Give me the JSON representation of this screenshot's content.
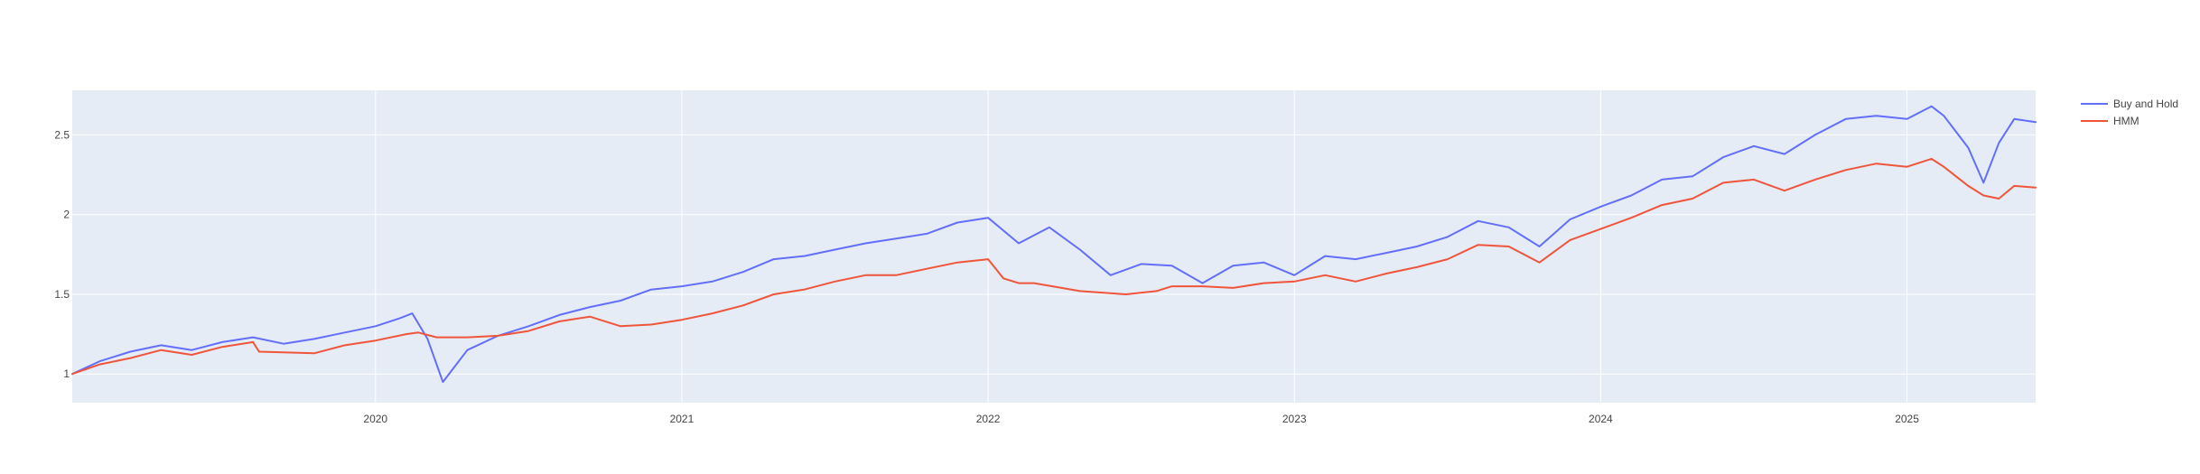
{
  "chart_data": {
    "type": "line",
    "title": "",
    "xlabel": "",
    "ylabel": "",
    "xlim": [
      2019.01,
      2025.42
    ],
    "ylim": [
      0.82,
      2.78
    ],
    "grid": true,
    "legend_position": "top-right",
    "x_ticks": [
      {
        "value": 2020,
        "label": "2020"
      },
      {
        "value": 2021,
        "label": "2021"
      },
      {
        "value": 2022,
        "label": "2022"
      },
      {
        "value": 2023,
        "label": "2023"
      },
      {
        "value": 2024,
        "label": "2024"
      },
      {
        "value": 2025,
        "label": "2025"
      }
    ],
    "y_ticks": [
      {
        "value": 1,
        "label": "1"
      },
      {
        "value": 1.5,
        "label": "1.5"
      },
      {
        "value": 2,
        "label": "2"
      },
      {
        "value": 2.5,
        "label": "2.5"
      }
    ],
    "series": [
      {
        "name": "Buy and Hold",
        "color": "#636efa",
        "x": [
          2019.01,
          2019.1,
          2019.2,
          2019.3,
          2019.4,
          2019.5,
          2019.6,
          2019.7,
          2019.8,
          2019.9,
          2020.0,
          2020.08,
          2020.12,
          2020.17,
          2020.22,
          2020.3,
          2020.4,
          2020.5,
          2020.6,
          2020.7,
          2020.8,
          2020.9,
          2021.0,
          2021.1,
          2021.2,
          2021.3,
          2021.4,
          2021.5,
          2021.6,
          2021.7,
          2021.8,
          2021.9,
          2022.0,
          2022.1,
          2022.2,
          2022.3,
          2022.4,
          2022.5,
          2022.6,
          2022.7,
          2022.8,
          2022.9,
          2023.0,
          2023.1,
          2023.2,
          2023.3,
          2023.4,
          2023.5,
          2023.6,
          2023.7,
          2023.8,
          2023.9,
          2024.0,
          2024.1,
          2024.2,
          2024.3,
          2024.4,
          2024.5,
          2024.6,
          2024.7,
          2024.8,
          2024.9,
          2025.0,
          2025.08,
          2025.12,
          2025.2,
          2025.25,
          2025.3,
          2025.35,
          2025.42
        ],
        "values": [
          1.0,
          1.08,
          1.14,
          1.18,
          1.15,
          1.2,
          1.23,
          1.19,
          1.22,
          1.26,
          1.3,
          1.35,
          1.38,
          1.22,
          0.95,
          1.15,
          1.24,
          1.3,
          1.37,
          1.42,
          1.46,
          1.53,
          1.55,
          1.58,
          1.64,
          1.72,
          1.74,
          1.78,
          1.82,
          1.85,
          1.88,
          1.95,
          1.98,
          1.82,
          1.92,
          1.78,
          1.62,
          1.69,
          1.68,
          1.57,
          1.68,
          1.7,
          1.62,
          1.74,
          1.72,
          1.76,
          1.8,
          1.86,
          1.96,
          1.92,
          1.8,
          1.97,
          2.05,
          2.12,
          2.22,
          2.24,
          2.36,
          2.43,
          2.38,
          2.5,
          2.6,
          2.62,
          2.6,
          2.68,
          2.62,
          2.42,
          2.2,
          2.45,
          2.6,
          2.58
        ]
      },
      {
        "name": "HMM",
        "color": "#ef553b",
        "x": [
          2019.01,
          2019.1,
          2019.2,
          2019.3,
          2019.4,
          2019.5,
          2019.6,
          2019.62,
          2019.8,
          2019.9,
          2020.0,
          2020.1,
          2020.14,
          2020.2,
          2020.3,
          2020.4,
          2020.5,
          2020.6,
          2020.7,
          2020.8,
          2020.9,
          2021.0,
          2021.1,
          2021.2,
          2021.3,
          2021.4,
          2021.5,
          2021.6,
          2021.7,
          2021.8,
          2021.9,
          2022.0,
          2022.05,
          2022.1,
          2022.15,
          2022.3,
          2022.45,
          2022.55,
          2022.6,
          2022.7,
          2022.8,
          2022.9,
          2023.0,
          2023.1,
          2023.2,
          2023.3,
          2023.4,
          2023.5,
          2023.6,
          2023.7,
          2023.8,
          2023.9,
          2024.0,
          2024.1,
          2024.2,
          2024.3,
          2024.4,
          2024.5,
          2024.6,
          2024.7,
          2024.8,
          2024.9,
          2025.0,
          2025.08,
          2025.12,
          2025.2,
          2025.25,
          2025.3,
          2025.35,
          2025.42
        ],
        "values": [
          1.0,
          1.06,
          1.1,
          1.15,
          1.12,
          1.17,
          1.2,
          1.14,
          1.13,
          1.18,
          1.21,
          1.25,
          1.26,
          1.23,
          1.23,
          1.24,
          1.27,
          1.33,
          1.36,
          1.3,
          1.31,
          1.34,
          1.38,
          1.43,
          1.5,
          1.53,
          1.58,
          1.62,
          1.62,
          1.66,
          1.7,
          1.72,
          1.6,
          1.57,
          1.57,
          1.52,
          1.5,
          1.52,
          1.55,
          1.55,
          1.54,
          1.57,
          1.58,
          1.62,
          1.58,
          1.63,
          1.67,
          1.72,
          1.81,
          1.8,
          1.7,
          1.84,
          1.91,
          1.98,
          2.06,
          2.1,
          2.2,
          2.22,
          2.15,
          2.22,
          2.28,
          2.32,
          2.3,
          2.35,
          2.3,
          2.18,
          2.12,
          2.1,
          2.18,
          2.17
        ]
      }
    ]
  }
}
